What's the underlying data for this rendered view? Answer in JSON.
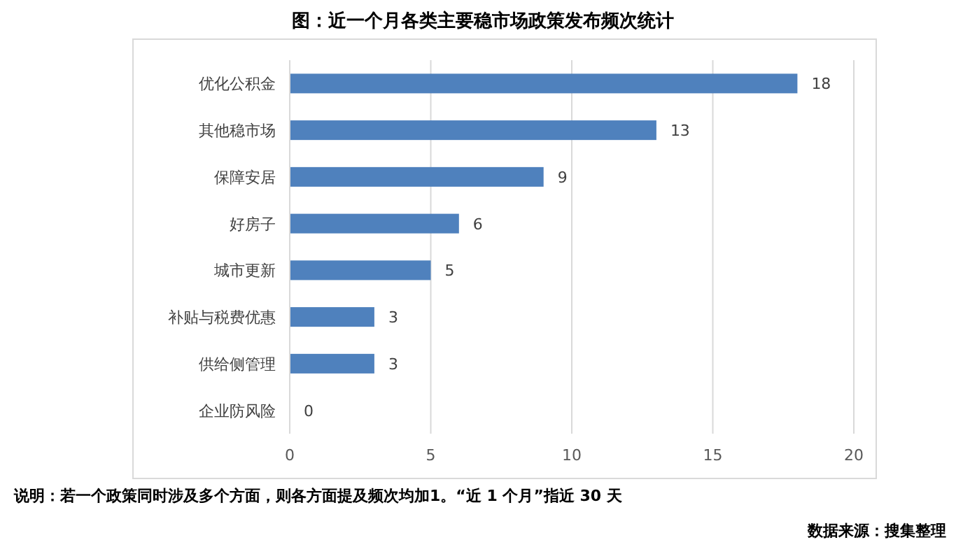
{
  "chart_data": {
    "type": "bar",
    "orientation": "horizontal",
    "title": "图：近一个月各类主要稳市场政策发布频次统计",
    "categories": [
      "优化公积金",
      "其他稳市场",
      "保障安居",
      "好房子",
      "城市更新",
      "补贴与税费优惠",
      "供给侧管理",
      "企业防风险"
    ],
    "values": [
      18,
      13,
      9,
      6,
      5,
      3,
      3,
      0
    ],
    "color": "#4f81bd",
    "data_labels": true,
    "xlim": [
      0,
      20
    ],
    "xticks": [
      0,
      5,
      10,
      15,
      20
    ],
    "grid": "x",
    "annotations": [
      "说明：若一个政策同时涉及多个方面，则各方面提及频次均加1。“近 1 个月”指近 30 天",
      "数据来源：搜集整理"
    ]
  }
}
